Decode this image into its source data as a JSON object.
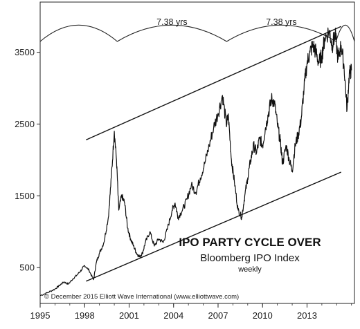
{
  "chart_data": {
    "type": "line",
    "title": "IPO PARTY CYCLE OVER",
    "subtitle": "Bloomberg IPO Index",
    "note": "weekly",
    "credit": "© December 2015 Elliott Wave International (www.elliottwave.com)",
    "x_axis": {
      "ticks": [
        1995,
        1998,
        2001,
        2004,
        2007,
        2010,
        2013
      ],
      "tick_labels": [
        "1995",
        "1998",
        "2001",
        "2004",
        "2007",
        "2010",
        "2013"
      ],
      "range": [
        1995,
        2016.2
      ]
    },
    "y_axis": {
      "ticks": [
        500,
        1500,
        2500,
        3500
      ],
      "tick_labels": [
        "500",
        "1500",
        "2500",
        "3500"
      ],
      "range": [
        0,
        4200
      ]
    },
    "grid": false,
    "cycles": [
      {
        "label": "7.38 yrs"
      },
      {
        "label": "7.38 yrs"
      }
    ],
    "cycle_dates": [
      1995,
      2000.2,
      2007.58,
      2014.96,
      2016.2
    ],
    "channel_lines": [
      {
        "name": "upper",
        "points": [
          [
            1998.1,
            2280
          ],
          [
            2015.3,
            3860
          ]
        ]
      },
      {
        "name": "lower",
        "points": [
          [
            1998.1,
            310
          ],
          [
            2015.3,
            1830
          ]
        ]
      }
    ],
    "series": [
      {
        "x": [
          1995.0,
          1995.5,
          1996.0,
          1996.3,
          1996.6,
          1996.9,
          1997.2,
          1997.5,
          1997.8,
          1998.0,
          1998.3,
          1998.6,
          1998.8,
          1999.0,
          1999.3,
          1999.6,
          1999.8,
          2000.0,
          2000.15,
          2000.3,
          2000.5,
          2000.7,
          2000.9,
          2001.1,
          2001.3,
          2001.5,
          2001.7,
          2001.9,
          2002.1,
          2002.4,
          2002.7,
          2003.0,
          2003.3,
          2003.6,
          2003.9,
          2004.1,
          2004.3,
          2004.6,
          2004.9,
          2005.2,
          2005.5,
          2005.8,
          2006.1,
          2006.4,
          2006.7,
          2007.0,
          2007.3,
          2007.55,
          2007.7,
          2007.9,
          2008.1,
          2008.35,
          2008.6,
          2008.8,
          2009.0,
          2009.2,
          2009.4,
          2009.6,
          2009.8,
          2010.0,
          2010.2,
          2010.4,
          2010.6,
          2010.8,
          2011.0,
          2011.2,
          2011.35,
          2011.6,
          2011.8,
          2012.0,
          2012.2,
          2012.4,
          2012.6,
          2012.8,
          2013.0,
          2013.2,
          2013.4,
          2013.6,
          2013.8,
          2014.0,
          2014.2,
          2014.5,
          2014.7,
          2014.9,
          2015.1,
          2015.3,
          2015.5,
          2015.7,
          2015.85,
          2016.0
        ],
        "y": [
          110,
          150,
          200,
          250,
          300,
          270,
          340,
          400,
          470,
          530,
          460,
          330,
          580,
          700,
          850,
          1200,
          1750,
          2400,
          2000,
          1300,
          1500,
          1400,
          1050,
          900,
          800,
          700,
          650,
          700,
          850,
          1000,
          800,
          900,
          850,
          1050,
          1300,
          1400,
          1200,
          1300,
          1450,
          1650,
          1550,
          1750,
          1950,
          2200,
          2450,
          2650,
          2900,
          2500,
          2600,
          2000,
          1700,
          1300,
          1200,
          1500,
          1750,
          2000,
          2200,
          2100,
          2300,
          2200,
          2450,
          2650,
          2850,
          2800,
          2500,
          2250,
          1950,
          2200,
          2000,
          1850,
          2200,
          2350,
          2550,
          3000,
          3350,
          3500,
          3600,
          3500,
          3350,
          3450,
          3700,
          3800,
          3600,
          3750,
          3400,
          3600,
          3300,
          2700,
          3200,
          3250
        ]
      }
    ]
  }
}
